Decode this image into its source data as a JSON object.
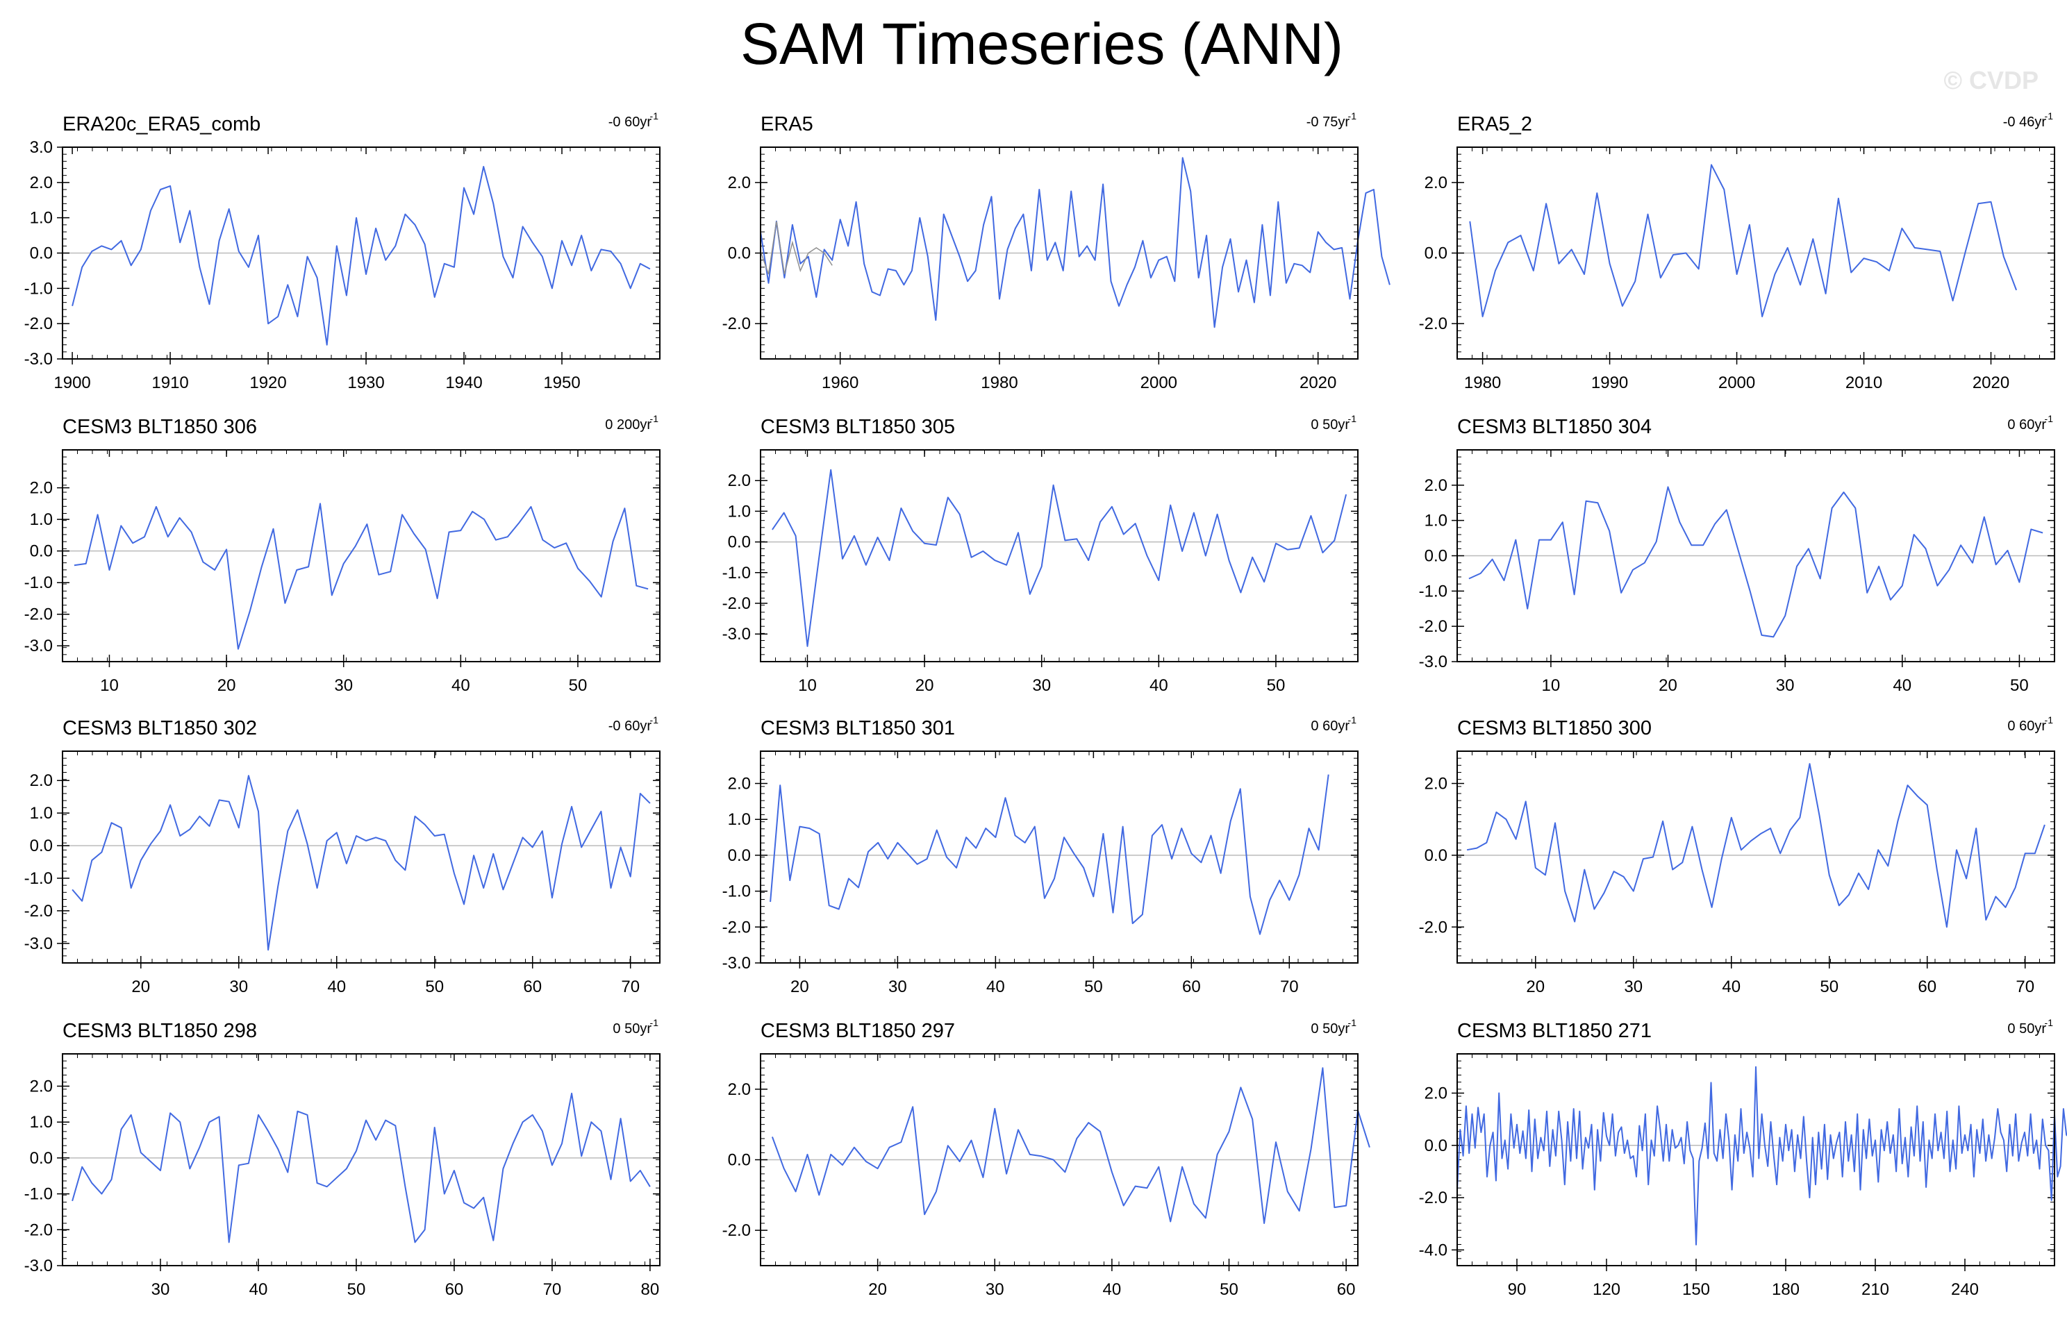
{
  "title": "SAM Timeseries (ANN)",
  "watermark": "© CVDP",
  "colors": {
    "line": "#4169e1",
    "zero": "#bbbbbb",
    "frame": "#000000",
    "trend_line": "#909090"
  },
  "chart_data": [
    {
      "type": "line",
      "title": "ERA20c_ERA5_comb",
      "trend": "-0 60yr",
      "xlim": [
        1899,
        1960
      ],
      "ylim": [
        -3,
        3
      ],
      "xticks": [
        1900,
        1910,
        1920,
        1930,
        1940,
        1950
      ],
      "yticks": [
        "3.0",
        "2.0",
        "1.0",
        "0.0",
        "-1.0",
        "-2.0",
        "-3.0"
      ],
      "x_start": 1900,
      "y": [
        -1.5,
        -0.4,
        0.05,
        0.2,
        0.1,
        0.35,
        -0.35,
        0.1,
        1.2,
        1.8,
        1.9,
        0.3,
        1.2,
        -0.4,
        -1.45,
        0.35,
        1.25,
        0.05,
        -0.4,
        0.5,
        -2.0,
        -1.8,
        -0.9,
        -1.8,
        -0.1,
        -0.7,
        -2.6,
        0.2,
        -1.2,
        1.0,
        -0.6,
        0.7,
        -0.2,
        0.2,
        1.1,
        0.8,
        0.25,
        -1.25,
        -0.3,
        -0.4,
        1.85,
        1.1,
        2.45,
        1.4,
        -0.1,
        -0.7,
        0.75,
        0.3,
        -0.1,
        -1.0,
        0.35,
        -0.35,
        0.5,
        -0.5,
        0.1,
        0.05,
        -0.3,
        -1.0,
        -0.3,
        -0.45
      ]
    },
    {
      "type": "line",
      "title": "ERA5",
      "trend": "-0 75yr",
      "xlim": [
        1950,
        2025
      ],
      "ylim": [
        -3,
        3
      ],
      "xticks": [
        1960,
        1980,
        2000,
        2020
      ],
      "yticks": [
        "2.0",
        "0.0",
        "-2.0"
      ],
      "x_start": 1950,
      "y": [
        0.6,
        -0.85,
        0.9,
        -0.7,
        0.8,
        -0.3,
        -0.1,
        -1.25,
        0.1,
        -0.2,
        0.95,
        0.2,
        1.45,
        -0.3,
        -1.1,
        -1.2,
        -0.45,
        -0.5,
        -0.9,
        -0.5,
        1.0,
        -0.1,
        -1.9,
        1.1,
        0.5,
        -0.1,
        -0.8,
        -0.5,
        0.8,
        1.6,
        -1.3,
        0.1,
        0.7,
        1.1,
        -0.5,
        1.8,
        -0.2,
        0.3,
        -0.5,
        1.75,
        -0.1,
        0.2,
        -0.2,
        1.95,
        -0.8,
        -1.5,
        -0.9,
        -0.4,
        0.35,
        -0.7,
        -0.2,
        -0.1,
        -0.8,
        2.7,
        1.75,
        -0.7,
        0.5,
        -2.1,
        -0.4,
        0.4,
        -1.1,
        -0.2,
        -1.4,
        0.8,
        -1.2,
        1.45,
        -0.85,
        -0.3,
        -0.35,
        -0.55,
        0.6,
        0.3,
        0.1,
        0.15,
        -1.3,
        0.35,
        1.7,
        1.8,
        -0.1,
        -0.9
      ]
    },
    {
      "type": "line",
      "title": "ERA5_2",
      "trend": "-0 46yr",
      "xlim": [
        1978,
        2025
      ],
      "ylim": [
        -3,
        3
      ],
      "xticks": [
        1980,
        1990,
        2000,
        2010,
        2020
      ],
      "yticks": [
        "2.0",
        "0.0",
        "-2.0"
      ],
      "x_start": 1979,
      "y": [
        0.9,
        -1.8,
        -0.5,
        0.3,
        0.5,
        -0.5,
        1.4,
        -0.3,
        0.1,
        -0.6,
        1.7,
        -0.3,
        -1.5,
        -0.8,
        1.1,
        -0.7,
        -0.05,
        -0.0,
        -0.45,
        2.5,
        1.8,
        -0.6,
        0.8,
        -1.8,
        -0.6,
        0.15,
        -0.9,
        0.4,
        -1.15,
        1.55,
        -0.55,
        -0.15,
        -0.25,
        -0.5,
        0.7,
        0.15,
        0.1,
        0.05,
        -1.35,
        0.05,
        1.4,
        1.45,
        -0.1,
        -1.05
      ]
    },
    {
      "type": "line",
      "title": "CESM3 BLT1850 306",
      "trend": "0 200yr",
      "xlim": [
        6,
        57
      ],
      "ylim": [
        -3.5,
        3.2
      ],
      "xticks": [
        10,
        20,
        30,
        40,
        50
      ],
      "yticks": [
        "2.0",
        "1.0",
        "0.0",
        "-1.0",
        "-2.0",
        "-3.0"
      ],
      "x_start": 7,
      "y": [
        -0.45,
        -0.4,
        1.15,
        -0.6,
        0.8,
        0.25,
        0.45,
        1.4,
        0.45,
        1.05,
        0.6,
        -0.35,
        -0.6,
        0.05,
        -3.1,
        -1.9,
        -0.5,
        0.7,
        -1.65,
        -0.6,
        -0.5,
        1.5,
        -1.4,
        -0.4,
        0.15,
        0.85,
        -0.75,
        -0.65,
        1.15,
        0.55,
        0.05,
        -1.5,
        0.6,
        0.65,
        1.25,
        1.0,
        0.35,
        0.45,
        0.9,
        1.4,
        0.35,
        0.1,
        0.25,
        -0.55,
        -0.95,
        -1.45,
        0.3,
        1.35,
        -1.1,
        -1.2
      ]
    },
    {
      "type": "line",
      "title": "CESM3 BLT1850 305",
      "trend": "0 50yr",
      "xlim": [
        6,
        57
      ],
      "ylim": [
        -3.9,
        3.0
      ],
      "xticks": [
        10,
        20,
        30,
        40,
        50
      ],
      "yticks": [
        "2.0",
        "1.0",
        "0.0",
        "-1.0",
        "-2.0",
        "-3.0"
      ],
      "x_start": 7,
      "y": [
        0.4,
        0.95,
        0.2,
        -3.4,
        -0.5,
        2.35,
        -0.55,
        0.2,
        -0.75,
        0.15,
        -0.6,
        1.1,
        0.35,
        -0.05,
        -0.1,
        1.45,
        0.9,
        -0.5,
        -0.3,
        -0.6,
        -0.75,
        0.3,
        -1.7,
        -0.8,
        1.85,
        0.05,
        0.1,
        -0.6,
        0.65,
        1.15,
        0.25,
        0.6,
        -0.45,
        -1.25,
        1.2,
        -0.3,
        0.95,
        -0.45,
        0.9,
        -0.6,
        -1.65,
        -0.5,
        -1.3,
        -0.05,
        -0.25,
        -0.2,
        0.85,
        -0.35,
        0.05,
        1.55
      ]
    },
    {
      "type": "line",
      "title": "CESM3 BLT1850 304",
      "trend": "0 60yr",
      "xlim": [
        2,
        53
      ],
      "ylim": [
        -3,
        3
      ],
      "xticks": [
        10,
        20,
        30,
        40,
        50
      ],
      "yticks": [
        "2.0",
        "1.0",
        "0.0",
        "-1.0",
        "-2.0",
        "-3.0"
      ],
      "x_start": 3,
      "y": [
        -0.65,
        -0.5,
        -0.1,
        -0.7,
        0.45,
        -1.5,
        0.45,
        0.45,
        0.95,
        -1.1,
        1.55,
        1.5,
        0.7,
        -1.05,
        -0.4,
        -0.2,
        0.4,
        1.95,
        0.95,
        0.3,
        0.3,
        0.9,
        1.3,
        0.15,
        -1.0,
        -2.25,
        -2.3,
        -1.7,
        -0.3,
        0.2,
        -0.65,
        1.35,
        1.8,
        1.35,
        -1.05,
        -0.3,
        -1.25,
        -0.85,
        0.6,
        0.2,
        -0.85,
        -0.4,
        0.3,
        -0.2,
        1.1,
        -0.25,
        0.15,
        -0.75,
        0.75,
        0.65
      ]
    },
    {
      "type": "line",
      "title": "CESM3 BLT1850 302",
      "trend": "-0 60yr",
      "xlim": [
        12,
        73
      ],
      "ylim": [
        -3.6,
        2.9
      ],
      "xticks": [
        20,
        30,
        40,
        50,
        60,
        70
      ],
      "yticks": [
        "2.0",
        "1.0",
        "0.0",
        "-1.0",
        "-2.0",
        "-3.0"
      ],
      "x_start": 13,
      "y": [
        -1.35,
        -1.7,
        -0.45,
        -0.2,
        0.7,
        0.55,
        -1.3,
        -0.45,
        0.05,
        0.45,
        1.25,
        0.3,
        0.5,
        0.9,
        0.6,
        1.4,
        1.35,
        0.55,
        2.15,
        1.05,
        -3.2,
        -1.25,
        0.45,
        1.1,
        0.05,
        -1.3,
        0.15,
        0.4,
        -0.55,
        0.3,
        0.15,
        0.25,
        0.15,
        -0.45,
        -0.75,
        0.9,
        0.65,
        0.3,
        0.35,
        -0.85,
        -1.8,
        -0.3,
        -1.3,
        -0.25,
        -1.35,
        -0.55,
        0.25,
        -0.05,
        0.45,
        -1.6,
        0.05,
        1.2,
        -0.05,
        0.5,
        1.05,
        -1.3,
        -0.05,
        -0.95,
        1.6,
        1.3
      ]
    },
    {
      "type": "line",
      "title": "CESM3 BLT1850 301",
      "trend": "0 60yr",
      "xlim": [
        16,
        77
      ],
      "ylim": [
        -3,
        2.9
      ],
      "xticks": [
        20,
        30,
        40,
        50,
        60,
        70
      ],
      "yticks": [
        "2.0",
        "1.0",
        "0.0",
        "-1.0",
        "-2.0",
        "-3.0"
      ],
      "x_start": 17,
      "y": [
        -1.3,
        1.95,
        -0.7,
        0.8,
        0.75,
        0.6,
        -1.4,
        -1.5,
        -0.65,
        -0.9,
        0.1,
        0.35,
        -0.1,
        0.35,
        0.05,
        -0.25,
        -0.1,
        0.7,
        -0.05,
        -0.35,
        0.5,
        0.2,
        0.75,
        0.5,
        1.6,
        0.55,
        0.35,
        0.8,
        -1.2,
        -0.65,
        0.5,
        0.05,
        -0.35,
        -1.15,
        0.6,
        -1.6,
        0.8,
        -1.9,
        -1.65,
        0.55,
        0.85,
        -0.1,
        0.75,
        0.05,
        -0.2,
        0.55,
        -0.5,
        0.95,
        1.85,
        -1.15,
        -2.2,
        -1.25,
        -0.7,
        -1.25,
        -0.55,
        0.75,
        0.15,
        2.25
      ]
    },
    {
      "type": "line",
      "title": "CESM3 BLT1850 300",
      "trend": "0 60yr",
      "xlim": [
        12,
        73
      ],
      "ylim": [
        -3,
        2.9
      ],
      "xticks": [
        20,
        30,
        40,
        50,
        60,
        70
      ],
      "yticks": [
        "2.0",
        "0.0",
        "-2.0"
      ],
      "x_start": 13,
      "y": [
        0.15,
        0.2,
        0.35,
        1.2,
        1.0,
        0.45,
        1.5,
        -0.35,
        -0.55,
        0.9,
        -1.0,
        -1.85,
        -0.4,
        -1.5,
        -1.05,
        -0.45,
        -0.6,
        -1.0,
        -0.1,
        -0.05,
        0.95,
        -0.4,
        -0.2,
        0.8,
        -0.4,
        -1.45,
        -0.1,
        1.05,
        0.15,
        0.4,
        0.6,
        0.75,
        0.05,
        0.7,
        1.05,
        2.55,
        1.1,
        -0.55,
        -1.4,
        -1.1,
        -0.5,
        -0.95,
        0.15,
        -0.3,
        0.95,
        1.95,
        1.65,
        1.4,
        -0.4,
        -2.0,
        0.15,
        -0.65,
        0.75,
        -1.8,
        -1.15,
        -1.45,
        -0.9,
        0.05,
        0.05,
        0.85
      ]
    },
    {
      "type": "line",
      "title": "CESM3 BLT1850 298",
      "trend": "0 50yr",
      "xlim": [
        20,
        81
      ],
      "ylim": [
        -3,
        2.9
      ],
      "xticks": [
        30,
        40,
        50,
        60,
        70,
        80
      ],
      "yticks": [
        "2.0",
        "1.0",
        "0.0",
        "-1.0",
        "-2.0",
        "-3.0"
      ],
      "x_start": 21,
      "y": [
        -1.2,
        -0.25,
        -0.7,
        -1.0,
        -0.6,
        0.8,
        1.2,
        0.15,
        -0.1,
        -0.35,
        1.25,
        1.0,
        -0.3,
        0.3,
        1.0,
        1.15,
        -2.35,
        -0.2,
        -0.15,
        1.2,
        0.75,
        0.25,
        -0.4,
        1.3,
        1.2,
        -0.7,
        -0.8,
        -0.55,
        -0.3,
        0.2,
        1.05,
        0.5,
        1.05,
        0.9,
        -0.8,
        -2.35,
        -2.0,
        0.85,
        -1.0,
        -0.35,
        -1.25,
        -1.4,
        -1.1,
        -2.3,
        -0.3,
        0.4,
        1.0,
        1.2,
        0.75,
        -0.2,
        0.4,
        1.8,
        0.05,
        1.0,
        0.75,
        -0.6,
        1.1,
        -0.65,
        -0.35,
        -0.8
      ]
    },
    {
      "type": "line",
      "title": "CESM3 BLT1850 297",
      "trend": "0 50yr",
      "xlim": [
        10,
        61
      ],
      "ylim": [
        -3,
        3
      ],
      "xticks": [
        20,
        30,
        40,
        50,
        60
      ],
      "yticks": [
        "2.0",
        "0.0",
        "-2.0"
      ],
      "x_start": 11,
      "y": [
        0.65,
        -0.25,
        -0.9,
        0.15,
        -1.0,
        0.15,
        -0.15,
        0.35,
        -0.05,
        -0.25,
        0.35,
        0.5,
        1.5,
        -1.55,
        -0.9,
        0.4,
        -0.05,
        0.55,
        -0.5,
        1.45,
        -0.4,
        0.85,
        0.15,
        0.1,
        0.0,
        -0.35,
        0.6,
        1.05,
        0.8,
        -0.35,
        -1.3,
        -0.75,
        -0.8,
        -0.2,
        -1.75,
        -0.2,
        -1.25,
        -1.65,
        0.15,
        0.8,
        2.05,
        1.15,
        -1.8,
        0.5,
        -0.9,
        -1.45,
        0.3,
        2.6,
        -1.35,
        -1.3,
        1.4,
        0.35
      ]
    },
    {
      "type": "line",
      "title": "CESM3 BLT1850 271",
      "trend": "0 50yr",
      "xlim": [
        70,
        270
      ],
      "ylim": [
        -4.6,
        3.5
      ],
      "xticks": [
        90,
        120,
        150,
        180,
        210,
        240
      ],
      "yticks": [
        "2.0",
        "0.0",
        "-2.0",
        "-4.0"
      ],
      "x_start": 70,
      "y": [
        -1.7,
        0.6,
        -0.4,
        1.5,
        -0.3,
        1.2,
        -0.1,
        1.45,
        0.5,
        1.2,
        -1.2,
        0.0,
        0.5,
        -1.35,
        2.0,
        -0.5,
        0.2,
        -0.9,
        1.2,
        -0.1,
        0.8,
        -0.3,
        0.55,
        -0.5,
        1.35,
        -1.0,
        1.0,
        -0.5,
        0.3,
        -0.2,
        1.3,
        -0.8,
        0.6,
        -0.4,
        1.3,
        0.2,
        -1.5,
        0.9,
        -0.6,
        1.4,
        -0.5,
        1.3,
        -0.9,
        0.3,
        -0.1,
        0.8,
        -1.7,
        0.6,
        -0.6,
        1.25,
        0.35,
        0.0,
        1.2,
        -0.4,
        0.5,
        0.7,
        -0.3,
        0.2,
        -0.5,
        -0.4,
        -1.2,
        0.75,
        -0.2,
        1.2,
        -1.5,
        0.2,
        -0.4,
        1.5,
        0.6,
        -0.6,
        0.8,
        -0.6,
        0.6,
        -0.1,
        0.0,
        0.3,
        -0.7,
        0.9,
        -0.2,
        -0.5,
        -3.8,
        -0.6,
        -0.1,
        0.85,
        -0.5,
        2.4,
        -0.3,
        -0.6,
        0.6,
        -0.5,
        1.2,
        0.2,
        -1.7,
        0.4,
        -0.6,
        1.4,
        -0.3,
        0.5,
        -0.1,
        -1.2,
        3.0,
        -0.5,
        1.2,
        0.0,
        -0.8,
        0.9,
        -0.4,
        -1.5,
        0.3,
        -0.6,
        0.8,
        -0.2,
        0.6,
        -1.0,
        0.4,
        -0.5,
        1.1,
        -0.6,
        -2.0,
        0.3,
        -1.5,
        0.5,
        -0.9,
        0.8,
        -1.3,
        0.4,
        -0.5,
        0.1,
        0.5,
        -1.2,
        0.9,
        -0.6,
        0.4,
        -1.0,
        1.2,
        -1.7,
        0.6,
        -0.5,
        1.0,
        -0.4,
        0.2,
        -1.4,
        0.6,
        -0.2,
        0.9,
        -0.3,
        0.4,
        -1.0,
        1.4,
        -0.7,
        0.3,
        -1.2,
        0.7,
        -0.4,
        1.5,
        -0.6,
        0.9,
        -1.6,
        0.2,
        -0.5,
        1.2,
        -0.2,
        0.5,
        -0.5,
        1.3,
        -1.0,
        0.2,
        -0.9,
        1.5,
        -0.3,
        0.4,
        -0.2,
        0.8,
        -1.2,
        0.6,
        -0.3,
        1.0,
        -0.6,
        0.4,
        -0.5,
        0.3,
        1.4,
        0.5,
        0.2,
        -1.0,
        0.8,
        -0.4,
        1.2,
        -0.6,
        0.1,
        0.5,
        -0.4,
        1.2,
        -0.3,
        0.2,
        -0.9,
        1.0,
        0.0,
        -0.2,
        -2.1,
        1.2,
        -1.2,
        -0.8,
        1.4,
        0.4,
        0.3
      ]
    }
  ]
}
